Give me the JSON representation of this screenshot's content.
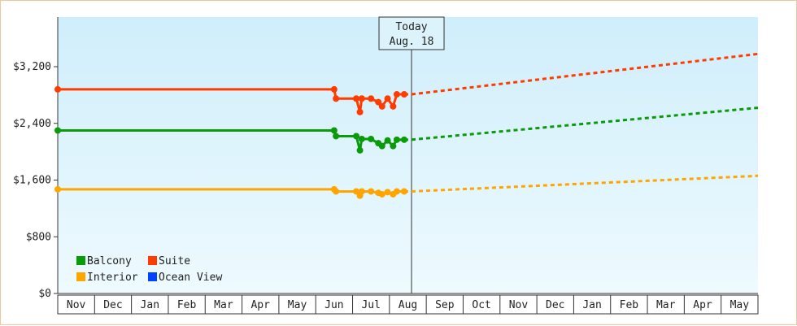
{
  "chart_data": {
    "type": "line",
    "y_ticks": [
      "$0",
      "$800",
      "$1,600",
      "$2,400",
      "$3,200"
    ],
    "ylim": [
      0,
      3200
    ],
    "y_range": [
      0,
      3200
    ],
    "months": [
      "Nov",
      "Dec",
      "Jan",
      "Feb",
      "Mar",
      "Apr",
      "May",
      "Jun",
      "Jul",
      "Aug",
      "Sep",
      "Oct",
      "Nov",
      "Dec",
      "Jan",
      "Feb",
      "Mar",
      "Apr",
      "May"
    ],
    "x_range": [
      0,
      19
    ],
    "today": {
      "label_line1": "Today",
      "label_line2": "Aug. 18",
      "x": 9.6
    },
    "legend": [
      {
        "name": "Balcony",
        "color": "#0a9a0a"
      },
      {
        "name": "Suite",
        "color": "#ff3c00"
      },
      {
        "name": "Interior",
        "color": "#ffa500"
      },
      {
        "name": "Ocean View",
        "color": "#0044ff"
      }
    ],
    "series": [
      {
        "name": "Suite",
        "color": "#ff3c00",
        "history": [
          [
            0,
            2880
          ],
          [
            7.5,
            2880
          ],
          [
            7.55,
            2750
          ],
          [
            8.1,
            2750
          ],
          [
            8.2,
            2560
          ],
          [
            8.25,
            2750
          ],
          [
            8.5,
            2750
          ],
          [
            8.7,
            2700
          ],
          [
            8.8,
            2640
          ],
          [
            8.95,
            2750
          ],
          [
            9.1,
            2640
          ],
          [
            9.2,
            2810
          ],
          [
            9.4,
            2810
          ]
        ],
        "projection": [
          [
            9.6,
            2810
          ],
          [
            19,
            3380
          ]
        ]
      },
      {
        "name": "Balcony",
        "color": "#0a9a0a",
        "history": [
          [
            0,
            2300
          ],
          [
            7.5,
            2300
          ],
          [
            7.55,
            2220
          ],
          [
            8.1,
            2220
          ],
          [
            8.2,
            2020
          ],
          [
            8.25,
            2180
          ],
          [
            8.5,
            2180
          ],
          [
            8.7,
            2120
          ],
          [
            8.8,
            2080
          ],
          [
            8.95,
            2160
          ],
          [
            9.1,
            2080
          ],
          [
            9.2,
            2170
          ],
          [
            9.4,
            2170
          ]
        ],
        "projection": [
          [
            9.6,
            2170
          ],
          [
            19,
            2620
          ]
        ]
      },
      {
        "name": "Interior",
        "color": "#ffa500",
        "history": [
          [
            0,
            1470
          ],
          [
            7.5,
            1470
          ],
          [
            7.55,
            1440
          ],
          [
            8.1,
            1440
          ],
          [
            8.2,
            1380
          ],
          [
            8.25,
            1440
          ],
          [
            8.5,
            1440
          ],
          [
            8.7,
            1420
          ],
          [
            8.8,
            1400
          ],
          [
            8.95,
            1430
          ],
          [
            9.1,
            1400
          ],
          [
            9.2,
            1440
          ],
          [
            9.4,
            1440
          ]
        ],
        "projection": [
          [
            9.6,
            1440
          ],
          [
            19,
            1660
          ]
        ]
      }
    ]
  }
}
